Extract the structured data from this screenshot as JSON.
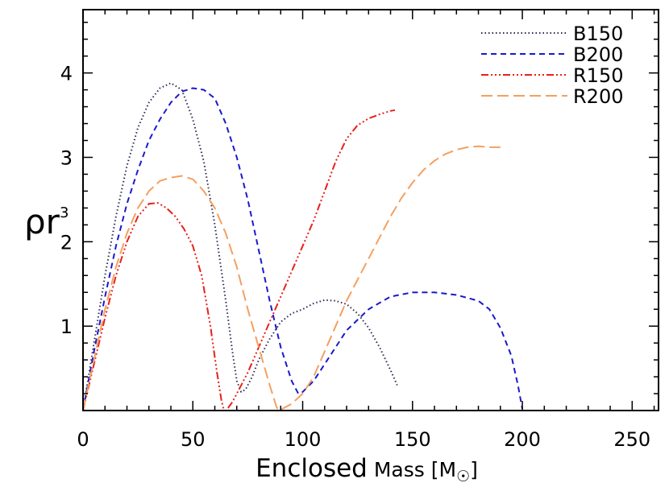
{
  "chart_data": {
    "type": "line",
    "title": "",
    "xlabel": "Enclosed Mass [M☉]",
    "xlabel_main": "Enclosed",
    "xlabel_rest": "Mass [M",
    "xlabel_unit_symbol": "☉",
    "xlabel_close": "]",
    "ylabel": "ρr³",
    "ylabel_base": "ρr",
    "ylabel_exp": "3",
    "xlim": [
      0,
      262
    ],
    "ylim": [
      0,
      4.75
    ],
    "xticks": [
      0,
      50,
      100,
      150,
      200,
      250
    ],
    "xtick_labels": [
      "0",
      "50",
      "100",
      "150",
      "200",
      "250"
    ],
    "yticks": [
      1,
      2,
      3,
      4
    ],
    "ytick_labels": [
      "1",
      "2",
      "3",
      "4"
    ],
    "legend_position": "top-right",
    "series": [
      {
        "name": "B150",
        "color": "#2a2a55",
        "dash": "1.5,3",
        "x": [
          0,
          5,
          10,
          15,
          20,
          25,
          30,
          35,
          40,
          45,
          50,
          55,
          60,
          65,
          68,
          70,
          72,
          74,
          77,
          80,
          85,
          90,
          95,
          100,
          105,
          110,
          115,
          120,
          125,
          130,
          135,
          140,
          143
        ],
        "y": [
          0,
          0.8,
          1.6,
          2.3,
          2.9,
          3.35,
          3.65,
          3.82,
          3.88,
          3.8,
          3.45,
          2.95,
          2.2,
          1.3,
          0.7,
          0.35,
          0.22,
          0.25,
          0.4,
          0.6,
          0.85,
          1.05,
          1.15,
          1.2,
          1.27,
          1.31,
          1.3,
          1.26,
          1.15,
          0.98,
          0.75,
          0.48,
          0.3
        ]
      },
      {
        "name": "B200",
        "color": "#1a1acc",
        "dash": "7,5",
        "x": [
          0,
          5,
          10,
          15,
          20,
          25,
          30,
          35,
          40,
          45,
          50,
          55,
          60,
          65,
          70,
          75,
          80,
          85,
          90,
          95,
          98,
          100,
          105,
          110,
          115,
          120,
          130,
          140,
          150,
          160,
          170,
          180,
          185,
          190,
          195,
          198,
          200
        ],
        "y": [
          0,
          0.7,
          1.35,
          1.95,
          2.45,
          2.85,
          3.2,
          3.45,
          3.65,
          3.78,
          3.82,
          3.8,
          3.7,
          3.4,
          3.0,
          2.5,
          1.9,
          1.3,
          0.75,
          0.35,
          0.2,
          0.22,
          0.35,
          0.55,
          0.75,
          0.95,
          1.2,
          1.35,
          1.4,
          1.4,
          1.37,
          1.3,
          1.2,
          0.98,
          0.65,
          0.3,
          0.02
        ]
      },
      {
        "name": "R150",
        "color": "#e8201a",
        "dash": "9,3,2,3,2,3,2,3",
        "x": [
          0,
          5,
          10,
          15,
          20,
          25,
          30,
          34,
          38,
          42,
          46,
          50,
          54,
          58,
          61,
          63,
          64,
          65,
          66,
          68,
          70,
          75,
          80,
          85,
          90,
          95,
          100,
          105,
          110,
          115,
          120,
          125,
          130,
          135,
          140,
          142
        ],
        "y": [
          0,
          0.55,
          1.1,
          1.6,
          2.0,
          2.3,
          2.45,
          2.46,
          2.4,
          2.3,
          2.15,
          1.95,
          1.6,
          1.0,
          0.45,
          0.12,
          0.02,
          0.0,
          0.03,
          0.1,
          0.2,
          0.45,
          0.75,
          1.05,
          1.35,
          1.65,
          1.95,
          2.25,
          2.6,
          2.95,
          3.22,
          3.38,
          3.46,
          3.51,
          3.55,
          3.56
        ]
      },
      {
        "name": "R200",
        "color": "#f4a060",
        "dash": "14,6",
        "x": [
          0,
          5,
          10,
          15,
          20,
          25,
          30,
          35,
          40,
          45,
          50,
          55,
          60,
          65,
          70,
          75,
          80,
          85,
          88,
          89,
          90,
          95,
          100,
          105,
          110,
          115,
          120,
          125,
          130,
          135,
          140,
          145,
          150,
          155,
          160,
          165,
          170,
          175,
          180,
          185,
          190
        ],
        "y": [
          0,
          0.6,
          1.2,
          1.7,
          2.1,
          2.4,
          2.6,
          2.72,
          2.76,
          2.78,
          2.74,
          2.6,
          2.4,
          2.1,
          1.7,
          1.2,
          0.75,
          0.3,
          0.05,
          0.0,
          0.01,
          0.08,
          0.2,
          0.4,
          0.7,
          1.0,
          1.3,
          1.55,
          1.8,
          2.05,
          2.3,
          2.52,
          2.7,
          2.85,
          2.96,
          3.04,
          3.09,
          3.12,
          3.13,
          3.12,
          3.12
        ]
      }
    ]
  }
}
